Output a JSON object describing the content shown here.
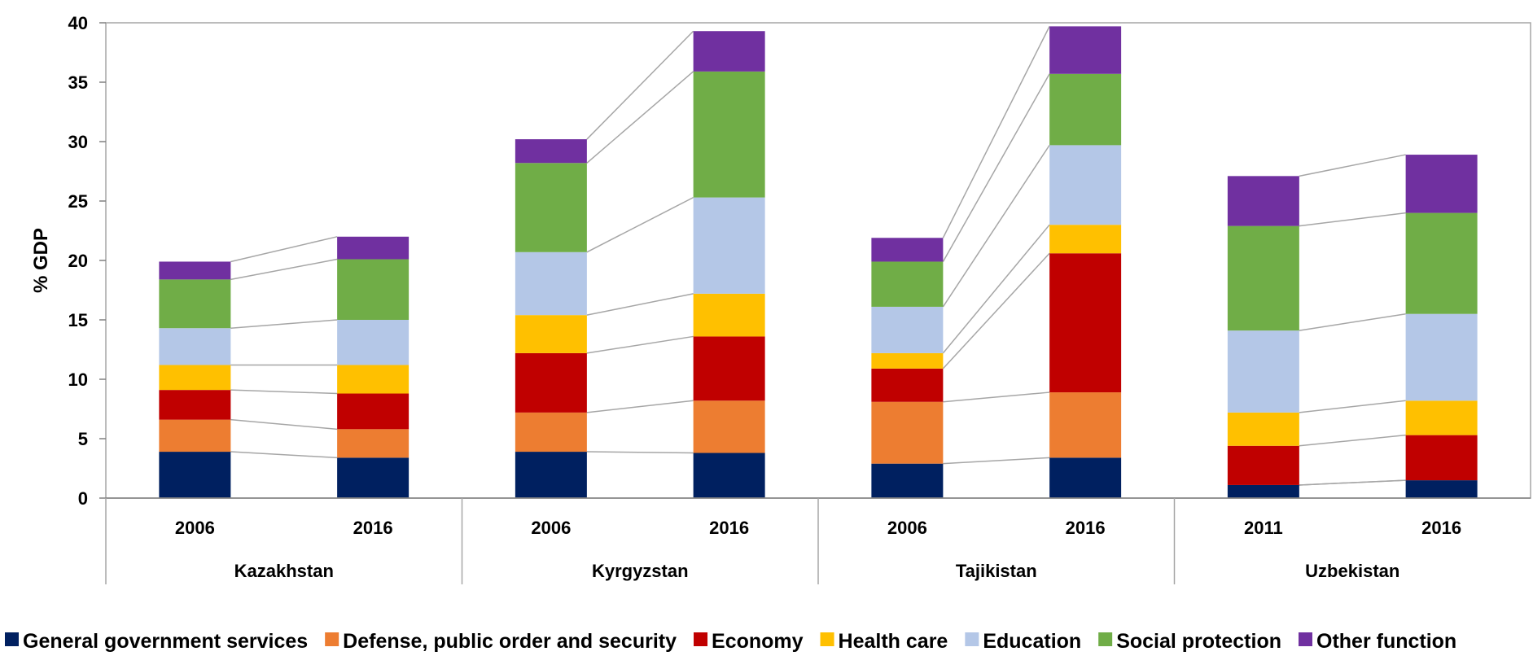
{
  "chart_data": {
    "type": "bar",
    "stacked": true,
    "ylabel": "% GDP",
    "ylim": [
      0,
      40
    ],
    "yticks": [
      0,
      5,
      10,
      15,
      20,
      25,
      30,
      35,
      40
    ],
    "groups": [
      {
        "label": "Kazakhstan",
        "categories": [
          "2006",
          "2016"
        ]
      },
      {
        "label": "Kyrgyzstan",
        "categories": [
          "2006",
          "2016"
        ]
      },
      {
        "label": "Tajikistan",
        "categories": [
          "2006",
          "2016"
        ]
      },
      {
        "label": "Uzbekistan",
        "categories": [
          "2011",
          "2016"
        ]
      }
    ],
    "series": [
      {
        "name": "General government services",
        "color": "#002060",
        "values": [
          3.9,
          3.4,
          3.9,
          3.8,
          2.9,
          3.4,
          1.1,
          1.5
        ]
      },
      {
        "name": "Defense, public order and security",
        "color": "#ED7D31",
        "values": [
          2.7,
          2.4,
          3.3,
          4.4,
          5.2,
          5.5,
          0.0,
          0.0
        ]
      },
      {
        "name": "Economy",
        "color": "#C00000",
        "values": [
          2.5,
          3.0,
          5.0,
          5.4,
          2.8,
          11.7,
          3.3,
          3.8
        ]
      },
      {
        "name": "Health care",
        "color": "#FFC000",
        "values": [
          2.1,
          2.4,
          3.2,
          3.6,
          1.3,
          2.4,
          2.8,
          2.9
        ]
      },
      {
        "name": "Education",
        "color": "#B4C7E7",
        "values": [
          3.1,
          3.8,
          5.3,
          8.1,
          3.9,
          6.7,
          6.9,
          7.3
        ]
      },
      {
        "name": "Social protection",
        "color": "#70AD47",
        "values": [
          4.1,
          5.1,
          7.5,
          10.6,
          3.8,
          6.0,
          8.8,
          8.5
        ]
      },
      {
        "name": "Other function",
        "color": "#7030A0",
        "values": [
          1.5,
          1.9,
          2.0,
          3.4,
          2.0,
          4.0,
          4.2,
          4.9
        ]
      }
    ],
    "grid": false,
    "legend": "bottom",
    "connector_color": "#A6A6A6"
  }
}
